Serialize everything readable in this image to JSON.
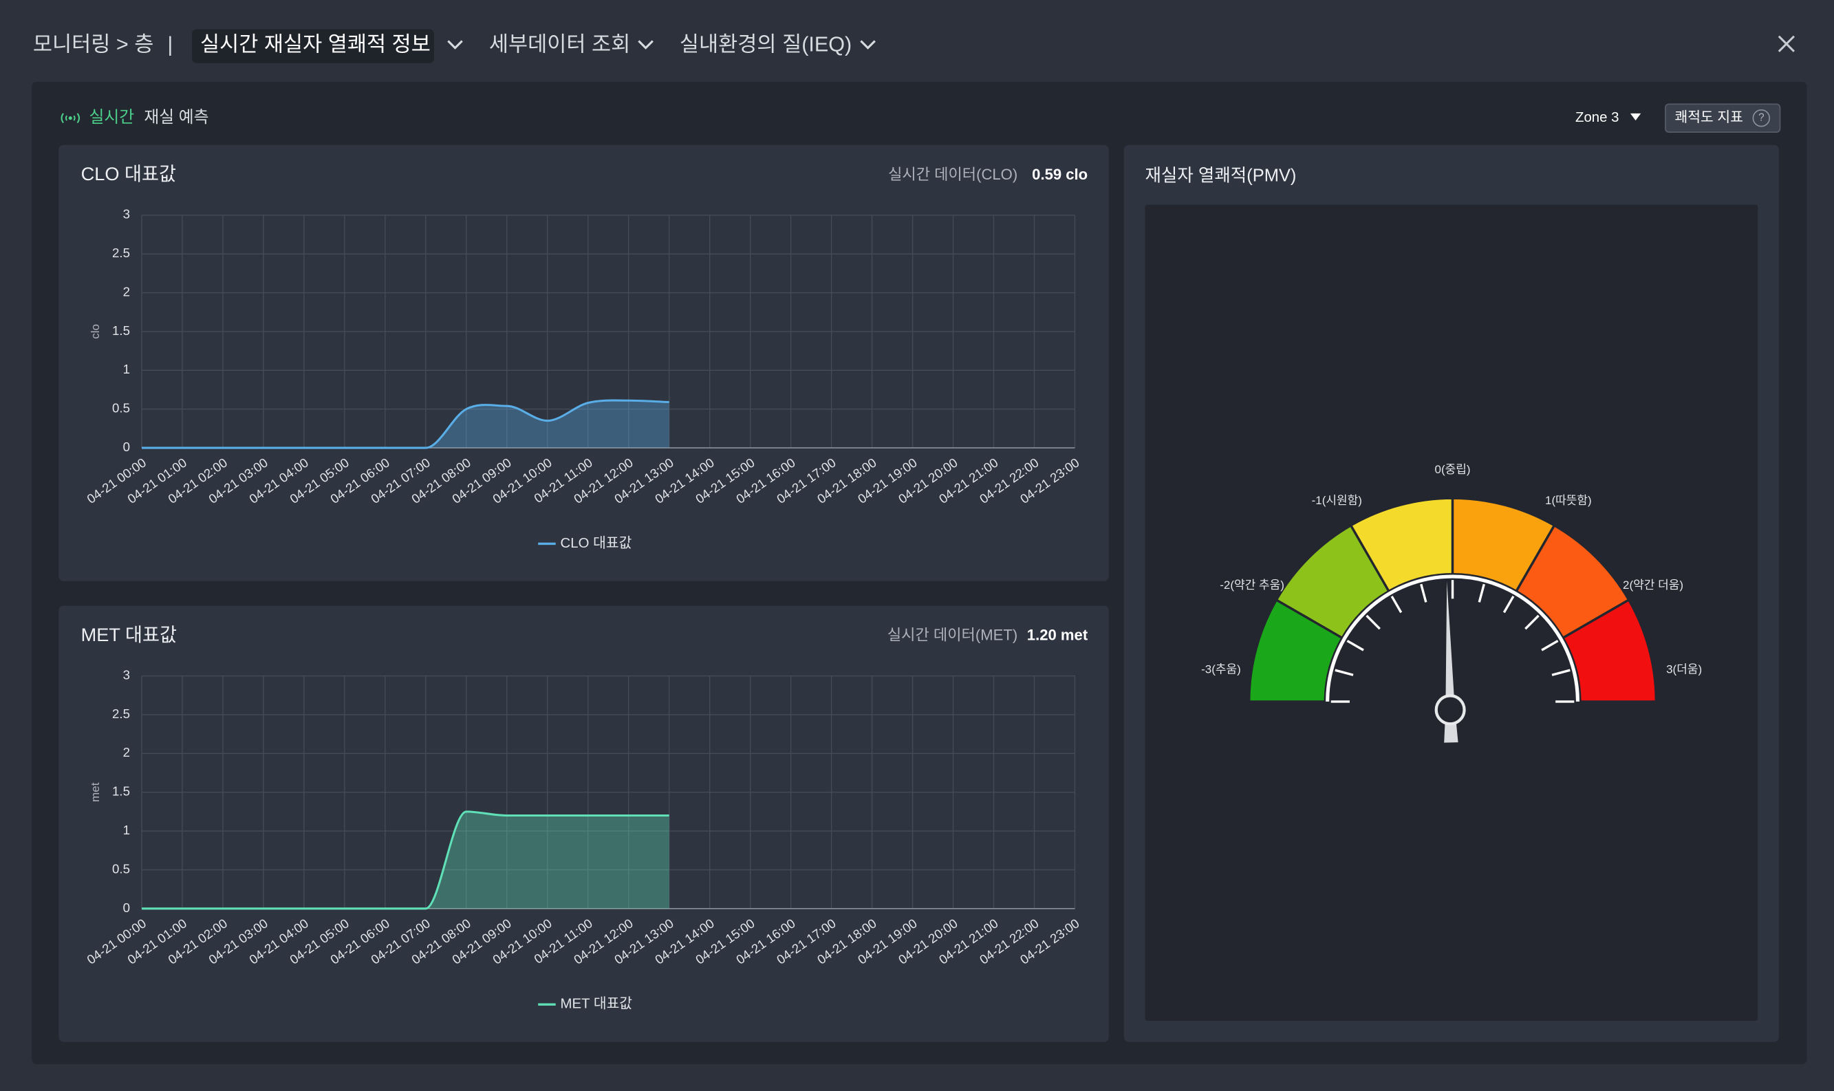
{
  "header": {
    "breadcrumb": "모니터링 > 층",
    "separator": "|",
    "tabs": [
      "실시간 재실자 열쾌적 정보",
      "세부데이터 조회",
      "실내환경의 질(IEQ)"
    ]
  },
  "panel": {
    "live": "실시간",
    "title": "재실 예측",
    "zone": "Zone 3",
    "index_button": "쾌적도 지표",
    "help": "?"
  },
  "chart_data": [
    {
      "type": "line",
      "title": "CLO 대표값",
      "realtime_label": "실시간 데이터(CLO)",
      "realtime_value": "0.59 clo",
      "ylabel": "clo",
      "categories": [
        "04-21 00:00",
        "04-21 01:00",
        "04-21 02:00",
        "04-21 03:00",
        "04-21 04:00",
        "04-21 05:00",
        "04-21 06:00",
        "04-21 07:00",
        "04-21 08:00",
        "04-21 09:00",
        "04-21 10:00",
        "04-21 11:00",
        "04-21 12:00",
        "04-21 13:00",
        "04-21 14:00",
        "04-21 15:00",
        "04-21 16:00",
        "04-21 17:00",
        "04-21 18:00",
        "04-21 19:00",
        "04-21 20:00",
        "04-21 21:00",
        "04-21 22:00",
        "04-21 23:00"
      ],
      "series": [
        {
          "name": "CLO 대표값",
          "color": "#5aaee8",
          "values": [
            0,
            0,
            0,
            0,
            0,
            0,
            0,
            0,
            0.5,
            0.54,
            0.35,
            0.58,
            0.61,
            0.59,
            null,
            null,
            null,
            null,
            null,
            null,
            null,
            null,
            null,
            null
          ]
        }
      ],
      "ylim": [
        0,
        3
      ],
      "yticks": [
        0,
        0.5,
        1,
        1.5,
        2,
        2.5,
        3
      ],
      "grid": true,
      "legend": "bottom"
    },
    {
      "type": "line",
      "title": "MET 대표값",
      "realtime_label": "실시간 데이터(MET)",
      "realtime_value": "1.20 met",
      "ylabel": "met",
      "categories": [
        "04-21 00:00",
        "04-21 01:00",
        "04-21 02:00",
        "04-21 03:00",
        "04-21 04:00",
        "04-21 05:00",
        "04-21 06:00",
        "04-21 07:00",
        "04-21 08:00",
        "04-21 09:00",
        "04-21 10:00",
        "04-21 11:00",
        "04-21 12:00",
        "04-21 13:00",
        "04-21 14:00",
        "04-21 15:00",
        "04-21 16:00",
        "04-21 17:00",
        "04-21 18:00",
        "04-21 19:00",
        "04-21 20:00",
        "04-21 21:00",
        "04-21 22:00",
        "04-21 23:00"
      ],
      "series": [
        {
          "name": "MET 대표값",
          "color": "#5fe0b6",
          "values": [
            0,
            0,
            0,
            0,
            0,
            0,
            0,
            0,
            1.25,
            1.2,
            1.2,
            1.2,
            1.2,
            1.2,
            null,
            null,
            null,
            null,
            null,
            null,
            null,
            null,
            null,
            null
          ]
        }
      ],
      "ylim": [
        0,
        3
      ],
      "yticks": [
        0,
        0.5,
        1,
        1.5,
        2,
        2.5,
        3
      ],
      "grid": true,
      "legend": "bottom"
    },
    {
      "type": "gauge",
      "title": "재실자 열쾌적(PMV)",
      "value": -0.05,
      "range": [
        -3,
        3
      ],
      "bands": [
        {
          "from": -3,
          "to": -2,
          "color": "#1aa81a"
        },
        {
          "from": -2,
          "to": -1,
          "color": "#8cc21a"
        },
        {
          "from": -1,
          "to": 0,
          "color": "#f3da2b"
        },
        {
          "from": 0,
          "to": 1,
          "color": "#f9a20e"
        },
        {
          "from": 1,
          "to": 2,
          "color": "#fb5b12"
        },
        {
          "from": 2,
          "to": 3,
          "color": "#f10f0f"
        }
      ],
      "labels": [
        {
          "value": -3,
          "label": "-3(추움)"
        },
        {
          "value": -2,
          "label": "-2(약간 추움)"
        },
        {
          "value": -1,
          "label": "-1(시원함)"
        },
        {
          "value": 0,
          "label": "0(중립)"
        },
        {
          "value": 1,
          "label": "1(따뜻함)"
        },
        {
          "value": 2,
          "label": "2(약간 더움)"
        },
        {
          "value": 3,
          "label": "3(더움)"
        }
      ],
      "ticks": [
        -3,
        -2.5,
        -2,
        -1.5,
        -1,
        -0.5,
        0,
        0.5,
        1,
        1.5,
        2,
        2.5,
        3
      ]
    }
  ]
}
